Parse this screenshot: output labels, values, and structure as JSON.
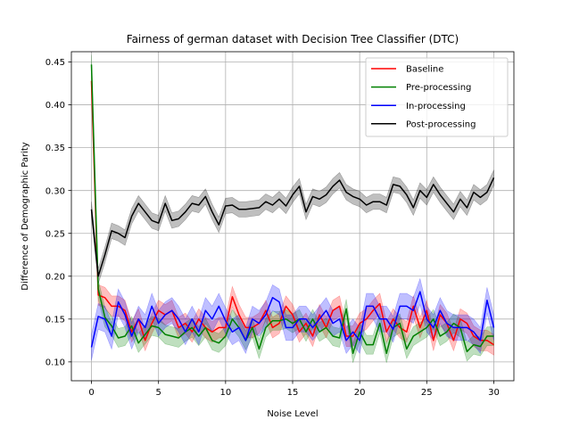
{
  "chart_data": {
    "type": "line",
    "title": "Fairness of german dataset with Decision Tree Classifier (DTC)",
    "xlabel": "Noise Level",
    "ylabel": "Difference of Demographic Parity",
    "xlim": [
      -1.5,
      31.5
    ],
    "ylim": [
      0.078,
      0.462
    ],
    "xticks": [
      0,
      5,
      10,
      15,
      20,
      25,
      30
    ],
    "xtick_labels": [
      "0",
      "5",
      "10",
      "15",
      "20",
      "25",
      "30"
    ],
    "yticks": [
      0.1,
      0.15,
      0.2,
      0.25,
      0.3,
      0.35,
      0.4,
      0.45
    ],
    "ytick_labels": [
      "0.10",
      "0.15",
      "0.20",
      "0.25",
      "0.30",
      "0.35",
      "0.40",
      "0.45"
    ],
    "grid": true,
    "legend_position": "top-right",
    "x": [
      0,
      0.5,
      1,
      1.5,
      2,
      2.5,
      3,
      3.5,
      4,
      4.5,
      5,
      5.5,
      6,
      6.5,
      7,
      7.5,
      8,
      8.5,
      9,
      9.5,
      10,
      10.5,
      11,
      11.5,
      12,
      12.5,
      13,
      13.5,
      14,
      14.5,
      15,
      15.5,
      16,
      16.5,
      17,
      17.5,
      18,
      18.5,
      19,
      19.5,
      20,
      20.5,
      21,
      21.5,
      22,
      22.5,
      23,
      23.5,
      24,
      24.5,
      25,
      25.5,
      26,
      26.5,
      27,
      27.5,
      28,
      28.5,
      29,
      29.5,
      30
    ],
    "series": [
      {
        "name": "Baseline",
        "color": "#ff0000",
        "band": 0.012,
        "values": [
          0.428,
          0.178,
          0.175,
          0.165,
          0.165,
          0.16,
          0.135,
          0.15,
          0.125,
          0.145,
          0.16,
          0.155,
          0.16,
          0.14,
          0.145,
          0.135,
          0.15,
          0.14,
          0.135,
          0.14,
          0.14,
          0.176,
          0.155,
          0.14,
          0.14,
          0.145,
          0.16,
          0.14,
          0.145,
          0.165,
          0.155,
          0.135,
          0.145,
          0.13,
          0.155,
          0.14,
          0.16,
          0.165,
          0.13,
          0.13,
          0.145,
          0.15,
          0.16,
          0.168,
          0.135,
          0.15,
          0.14,
          0.135,
          0.165,
          0.14,
          0.16,
          0.125,
          0.155,
          0.145,
          0.125,
          0.15,
          0.145,
          0.13,
          0.125,
          0.125,
          0.12
        ]
      },
      {
        "name": "Pre-processing",
        "color": "#008000",
        "band": 0.011,
        "values": [
          0.447,
          0.185,
          0.152,
          0.142,
          0.128,
          0.13,
          0.142,
          0.122,
          0.132,
          0.142,
          0.14,
          0.132,
          0.13,
          0.128,
          0.135,
          0.14,
          0.13,
          0.14,
          0.125,
          0.122,
          0.13,
          0.15,
          0.14,
          0.125,
          0.14,
          0.115,
          0.14,
          0.148,
          0.148,
          0.15,
          0.145,
          0.15,
          0.135,
          0.15,
          0.135,
          0.14,
          0.13,
          0.128,
          0.162,
          0.11,
          0.135,
          0.12,
          0.12,
          0.145,
          0.11,
          0.14,
          0.145,
          0.115,
          0.13,
          0.135,
          0.14,
          0.15,
          0.13,
          0.135,
          0.145,
          0.14,
          0.112,
          0.12,
          0.118,
          0.13,
          0.13
        ]
      },
      {
        "name": "In-processing",
        "color": "#0000ff",
        "band": 0.015,
        "values": [
          0.117,
          0.153,
          0.15,
          0.13,
          0.17,
          0.155,
          0.13,
          0.15,
          0.14,
          0.165,
          0.145,
          0.155,
          0.16,
          0.15,
          0.135,
          0.15,
          0.135,
          0.16,
          0.15,
          0.165,
          0.148,
          0.135,
          0.14,
          0.125,
          0.15,
          0.145,
          0.155,
          0.175,
          0.17,
          0.14,
          0.14,
          0.15,
          0.15,
          0.14,
          0.15,
          0.16,
          0.145,
          0.15,
          0.125,
          0.135,
          0.125,
          0.165,
          0.165,
          0.15,
          0.15,
          0.138,
          0.165,
          0.165,
          0.16,
          0.182,
          0.15,
          0.14,
          0.16,
          0.145,
          0.14,
          0.14,
          0.14,
          0.135,
          0.125,
          0.172,
          0.14
        ]
      },
      {
        "name": "Post-processing",
        "color": "#000000",
        "band": 0.009,
        "values": [
          0.278,
          0.2,
          0.225,
          0.253,
          0.25,
          0.245,
          0.27,
          0.285,
          0.275,
          0.265,
          0.262,
          0.285,
          0.265,
          0.267,
          0.275,
          0.285,
          0.283,
          0.293,
          0.275,
          0.26,
          0.282,
          0.283,
          0.278,
          0.278,
          0.279,
          0.28,
          0.287,
          0.283,
          0.29,
          0.282,
          0.295,
          0.305,
          0.275,
          0.293,
          0.29,
          0.295,
          0.305,
          0.312,
          0.298,
          0.293,
          0.29,
          0.283,
          0.287,
          0.287,
          0.283,
          0.307,
          0.305,
          0.295,
          0.28,
          0.3,
          0.292,
          0.307,
          0.295,
          0.285,
          0.275,
          0.29,
          0.28,
          0.298,
          0.292,
          0.298,
          0.315
        ]
      }
    ]
  }
}
